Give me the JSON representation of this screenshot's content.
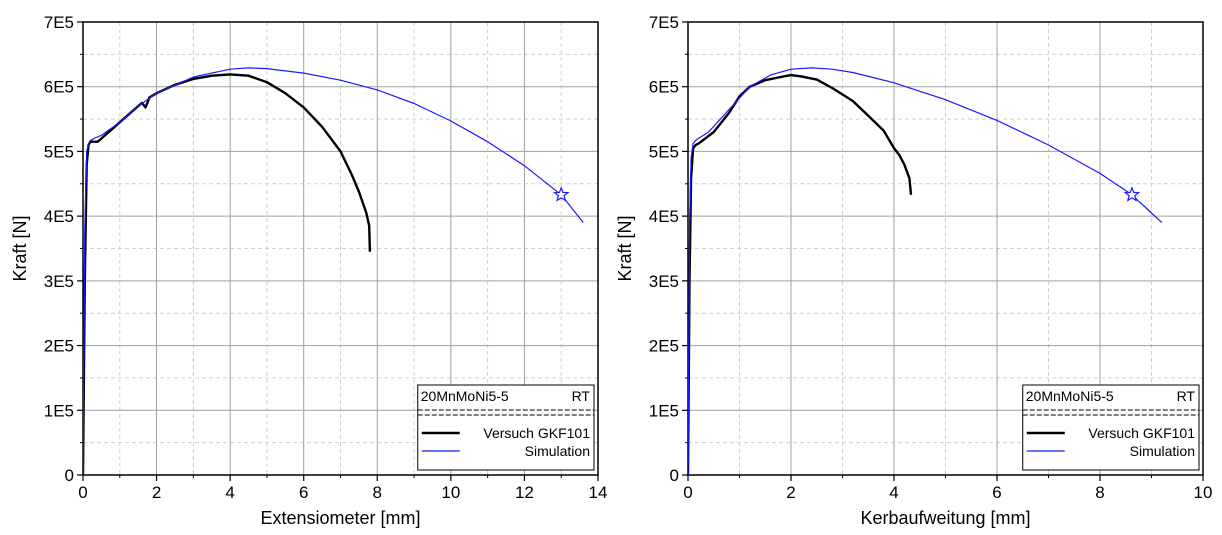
{
  "chart_data": [
    {
      "type": "line",
      "xlabel": "Extensiometer [mm]",
      "ylabel": "Kraft [N]",
      "xlim": [
        0,
        14
      ],
      "ylim": [
        0,
        700000
      ],
      "xticks": [
        "0",
        "2",
        "4",
        "6",
        "8",
        "10",
        "12",
        "14"
      ],
      "yticks": [
        "0",
        "1E5",
        "2E5",
        "3E5",
        "4E5",
        "5E5",
        "6E5",
        "7E5"
      ],
      "grid": true,
      "legend": {
        "position": "bottom-right",
        "header_left": "20MnMoNi5-5",
        "header_right": "RT",
        "entries": [
          "Versuch GKF101",
          "Simulation"
        ]
      },
      "series": [
        {
          "name": "Versuch GKF101",
          "color": "#000000",
          "x": [
            0,
            0.05,
            0.1,
            0.15,
            0.2,
            0.3,
            0.4,
            0.5,
            0.8,
            1.2,
            1.6,
            1.7,
            1.75,
            1.8,
            2.0,
            2.5,
            3.0,
            3.5,
            4.0,
            4.5,
            5.0,
            5.5,
            6.0,
            6.5,
            7.0,
            7.3,
            7.5,
            7.7,
            7.78,
            7.8
          ],
          "y": [
            0,
            300000,
            480000,
            510000,
            515000,
            515000,
            515000,
            520000,
            535000,
            555000,
            575000,
            568000,
            575000,
            583000,
            590000,
            603000,
            612000,
            617000,
            619000,
            617000,
            607000,
            590000,
            568000,
            538000,
            500000,
            465000,
            438000,
            405000,
            385000,
            345000
          ]
        },
        {
          "name": "Simulation",
          "color": "#1a1aff",
          "x": [
            0,
            0.05,
            0.1,
            0.15,
            0.2,
            0.3,
            0.5,
            1.0,
            1.5,
            2.0,
            3.0,
            4.0,
            4.5,
            5.0,
            6.0,
            7.0,
            8.0,
            9.0,
            10.0,
            11.0,
            12.0,
            13.0,
            13.6
          ],
          "y": [
            0,
            380000,
            500000,
            512000,
            517000,
            520000,
            525000,
            545000,
            570000,
            590000,
            615000,
            627000,
            629000,
            628000,
            621000,
            610000,
            595000,
            574000,
            547000,
            515000,
            478000,
            433000,
            390000
          ]
        }
      ],
      "markers": [
        {
          "series": "Simulation",
          "shape": "star",
          "x": 13.0,
          "y": 433000
        }
      ]
    },
    {
      "type": "line",
      "xlabel": "Kerbaufweitung [mm]",
      "ylabel": "Kraft [N]",
      "xlim": [
        0,
        10
      ],
      "ylim": [
        0,
        700000
      ],
      "xticks": [
        "0",
        "2",
        "4",
        "6",
        "8",
        "10"
      ],
      "yticks": [
        "0",
        "1E5",
        "2E5",
        "3E5",
        "4E5",
        "5E5",
        "6E5",
        "7E5"
      ],
      "grid": true,
      "legend": {
        "position": "bottom-right",
        "header_left": "20MnMoNi5-5",
        "header_right": "RT",
        "entries": [
          "Versuch GKF101",
          "Simulation"
        ]
      },
      "series": [
        {
          "name": "Versuch GKF101",
          "color": "#000000",
          "x": [
            0,
            0.03,
            0.06,
            0.1,
            0.15,
            0.2,
            0.3,
            0.5,
            0.8,
            1.0,
            1.2,
            1.5,
            1.8,
            2.0,
            2.2,
            2.5,
            2.8,
            3.0,
            3.2,
            3.5,
            3.8,
            4.0,
            4.1,
            4.2,
            4.3,
            4.33
          ],
          "y": [
            0,
            300000,
            460000,
            505000,
            510000,
            512000,
            518000,
            530000,
            560000,
            585000,
            600000,
            610000,
            615000,
            618000,
            616000,
            611000,
            598000,
            588000,
            578000,
            555000,
            532000,
            505000,
            495000,
            480000,
            458000,
            433000
          ]
        },
        {
          "name": "Simulation",
          "color": "#1a1aff",
          "x": [
            0,
            0.03,
            0.06,
            0.1,
            0.15,
            0.2,
            0.4,
            0.8,
            1.2,
            1.6,
            2.0,
            2.4,
            2.8,
            3.2,
            4.0,
            5.0,
            6.0,
            7.0,
            8.0,
            8.62,
            9.2
          ],
          "y": [
            0,
            380000,
            490000,
            512000,
            517000,
            520000,
            530000,
            565000,
            600000,
            618000,
            627000,
            629000,
            627000,
            622000,
            606000,
            580000,
            548000,
            510000,
            466000,
            433000,
            390000
          ]
        }
      ],
      "markers": [
        {
          "series": "Simulation",
          "shape": "star",
          "x": 8.62,
          "y": 433000
        }
      ]
    }
  ]
}
